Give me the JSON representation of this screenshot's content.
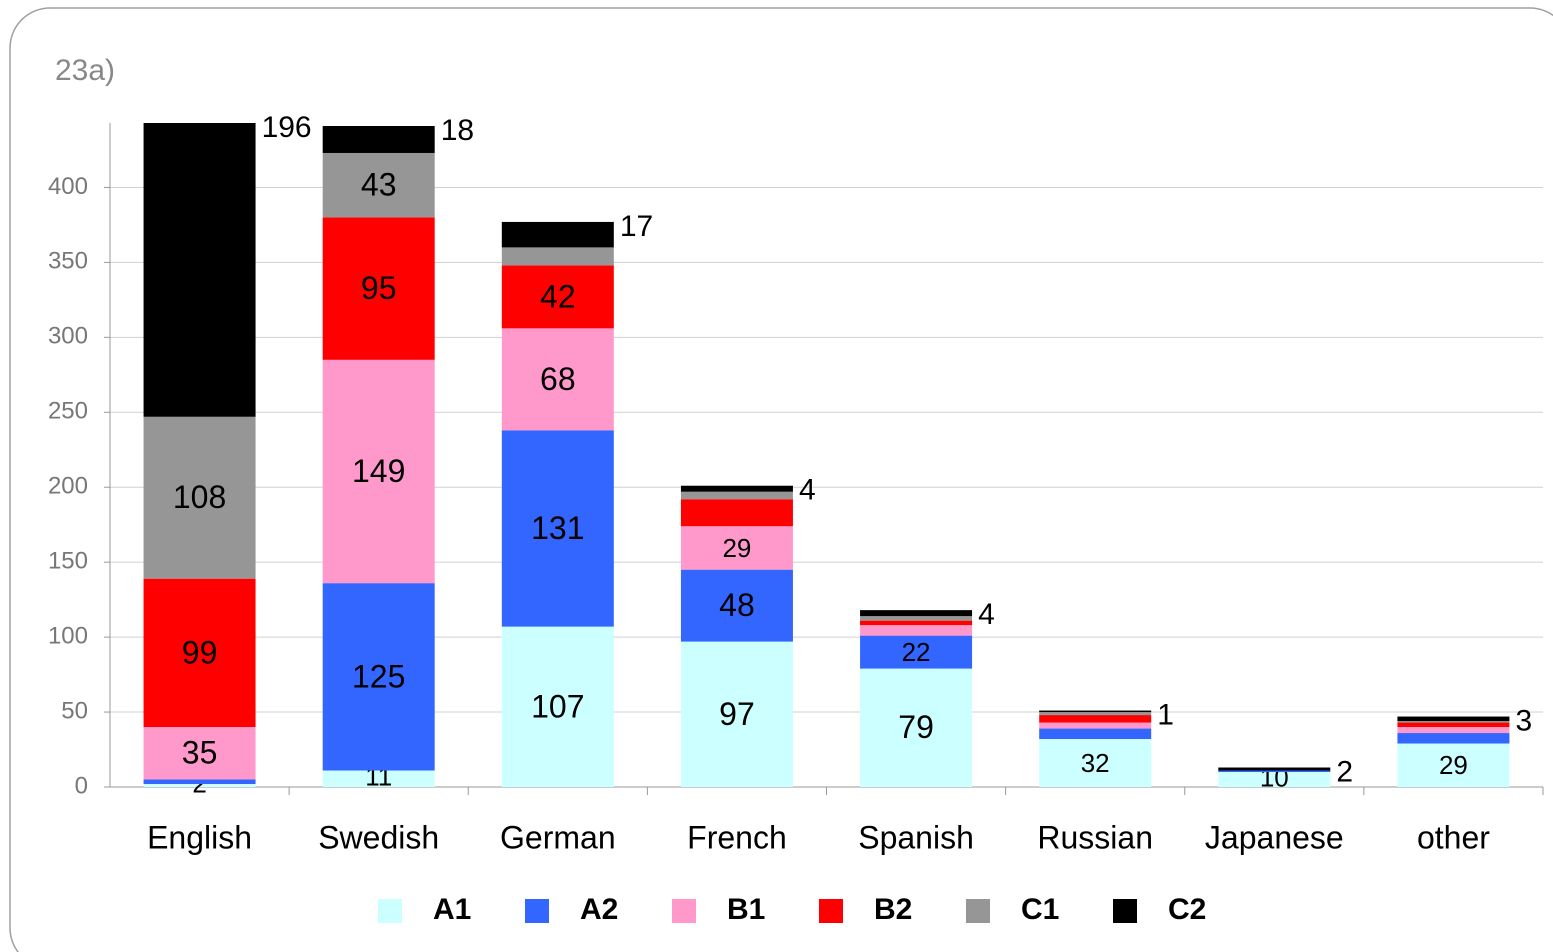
{
  "chart_data": {
    "type": "bar",
    "stacked": true,
    "title": "23a)",
    "categories": [
      "English",
      "Swedish",
      "German",
      "French",
      "Spanish",
      "Russian",
      "Japanese",
      "other"
    ],
    "series": [
      {
        "name": "A1",
        "color": "#ccffff",
        "values": [
          2,
          11,
          107,
          97,
          79,
          32,
          10,
          29
        ],
        "value_labels": [
          "2",
          "11",
          "107",
          "97",
          "79",
          "32",
          "10",
          "29"
        ]
      },
      {
        "name": "A2",
        "color": "#3366ff",
        "values": [
          3,
          125,
          131,
          48,
          22,
          7,
          1,
          7
        ],
        "value_labels": [
          null,
          "125",
          "131",
          "48",
          "22",
          null,
          null,
          null
        ]
      },
      {
        "name": "B1",
        "color": "#ff99cc",
        "values": [
          35,
          149,
          68,
          29,
          7,
          4,
          0,
          4
        ],
        "value_labels": [
          "35",
          "149",
          "68",
          "29",
          null,
          null,
          null,
          null
        ]
      },
      {
        "name": "B2",
        "color": "#ff0000",
        "values": [
          99,
          95,
          42,
          18,
          3,
          5,
          0,
          3
        ],
        "value_labels": [
          "99",
          "95",
          "42",
          null,
          null,
          null,
          null,
          null
        ]
      },
      {
        "name": "C1",
        "color": "#969696",
        "values": [
          108,
          43,
          12,
          5,
          3,
          2,
          0,
          1
        ],
        "value_labels": [
          "108",
          "43",
          null,
          null,
          null,
          null,
          null,
          null
        ]
      },
      {
        "name": "C2",
        "color": "#000000",
        "values": [
          196,
          18,
          17,
          4,
          4,
          1,
          2,
          3
        ],
        "value_labels": [
          "196",
          "18",
          "17",
          "4",
          "4",
          "1",
          "2",
          "3"
        ]
      }
    ],
    "ylim": [
      0,
      443
    ],
    "yticks": [
      0,
      50,
      100,
      150,
      200,
      250,
      300,
      350,
      400
    ],
    "grid": true,
    "legend": "bottom"
  }
}
